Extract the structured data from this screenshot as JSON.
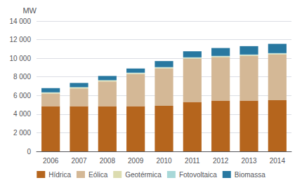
{
  "chart_data": {
    "type": "bar",
    "stacked": true,
    "ylabel": "MW",
    "categories": [
      "2006",
      "2007",
      "2008",
      "2009",
      "2010",
      "2011",
      "2012",
      "2013",
      "2014"
    ],
    "series": [
      {
        "name": "Hídrica",
        "color": "#b5651d",
        "values": [
          4850,
          4850,
          4850,
          4850,
          4900,
          5300,
          5450,
          5450,
          5500
        ]
      },
      {
        "name": "Eólica",
        "color": "#d4b896",
        "values": [
          1350,
          1900,
          2650,
          3450,
          4000,
          4650,
          4650,
          4800,
          4900
        ]
      },
      {
        "name": "Geotérmica",
        "color": "#dcdcb0",
        "values": [
          100,
          100,
          100,
          100,
          100,
          100,
          100,
          100,
          100
        ]
      },
      {
        "name": "Fotovoltaica",
        "color": "#a8d8d8",
        "values": [
          50,
          50,
          50,
          50,
          50,
          50,
          50,
          50,
          50
        ]
      },
      {
        "name": "Biomassa",
        "color": "#2878a0",
        "values": [
          450,
          450,
          450,
          450,
          650,
          650,
          850,
          900,
          1000
        ]
      }
    ],
    "ylim": [
      0,
      14000
    ],
    "yticks": [
      0,
      {
        "value": 2000,
        "label": "2 000"
      },
      {
        "value": 4000,
        "label": "4 000"
      },
      {
        "value": 6000,
        "label": "6 000"
      },
      {
        "value": 8000,
        "label": "8 000"
      },
      {
        "value": 10000,
        "label": "10 000"
      },
      {
        "value": 12000,
        "label": "12 000"
      },
      {
        "value": 14000,
        "label": "14 000"
      }
    ],
    "grid": true,
    "legend": "bottom"
  }
}
